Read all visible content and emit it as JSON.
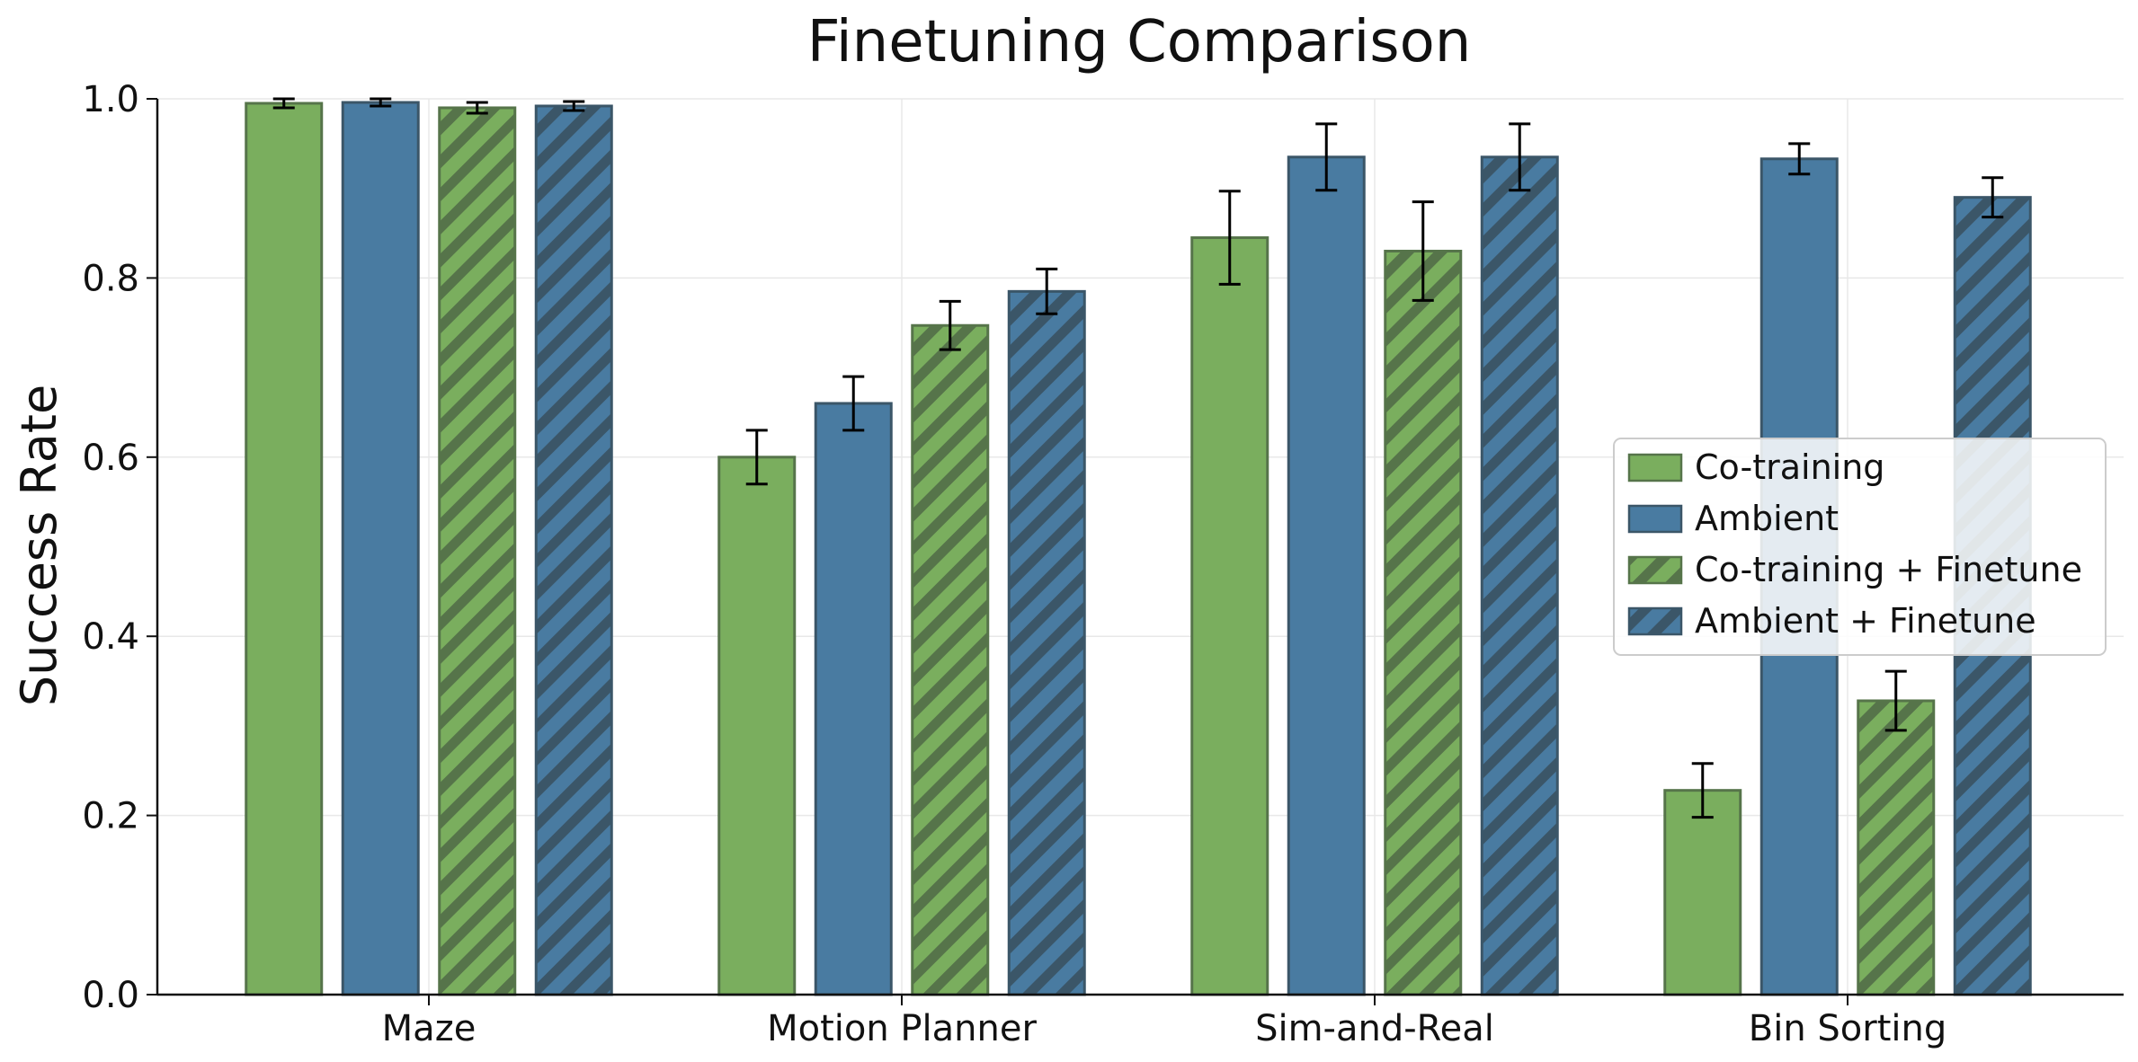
{
  "chart_data": {
    "type": "bar",
    "title": "Finetuning Comparison",
    "xlabel": "",
    "ylabel": "Success Rate",
    "ylim": [
      0,
      1.0
    ],
    "yticks": [
      "0.0",
      "0.2",
      "0.4",
      "0.6",
      "0.8",
      "1.0"
    ],
    "grid": true,
    "legend_position": "center-right",
    "categories": [
      "Maze",
      "Motion Planner",
      "Sim-and-Real",
      "Bin Sorting"
    ],
    "series": [
      {
        "name": "Co-training",
        "color": "#7aae5e",
        "edge": "#56744a",
        "hatch": false,
        "values": [
          0.995,
          0.6,
          0.845,
          0.228
        ],
        "errors": [
          0.005,
          0.03,
          0.052,
          0.03
        ]
      },
      {
        "name": "Ambient",
        "color": "#497ba1",
        "edge": "#3b5668",
        "hatch": false,
        "values": [
          0.996,
          0.66,
          0.935,
          0.933
        ],
        "errors": [
          0.004,
          0.03,
          0.037,
          0.017
        ]
      },
      {
        "name": "Co-training + Finetune",
        "color": "#7aae5e",
        "edge": "#56744a",
        "hatch": true,
        "values": [
          0.99,
          0.747,
          0.83,
          0.328
        ],
        "errors": [
          0.006,
          0.027,
          0.055,
          0.033
        ]
      },
      {
        "name": "Ambient + Finetune",
        "color": "#497ba1",
        "edge": "#3b5668",
        "hatch": true,
        "values": [
          0.992,
          0.785,
          0.935,
          0.89
        ],
        "errors": [
          0.005,
          0.025,
          0.037,
          0.022
        ]
      }
    ]
  }
}
